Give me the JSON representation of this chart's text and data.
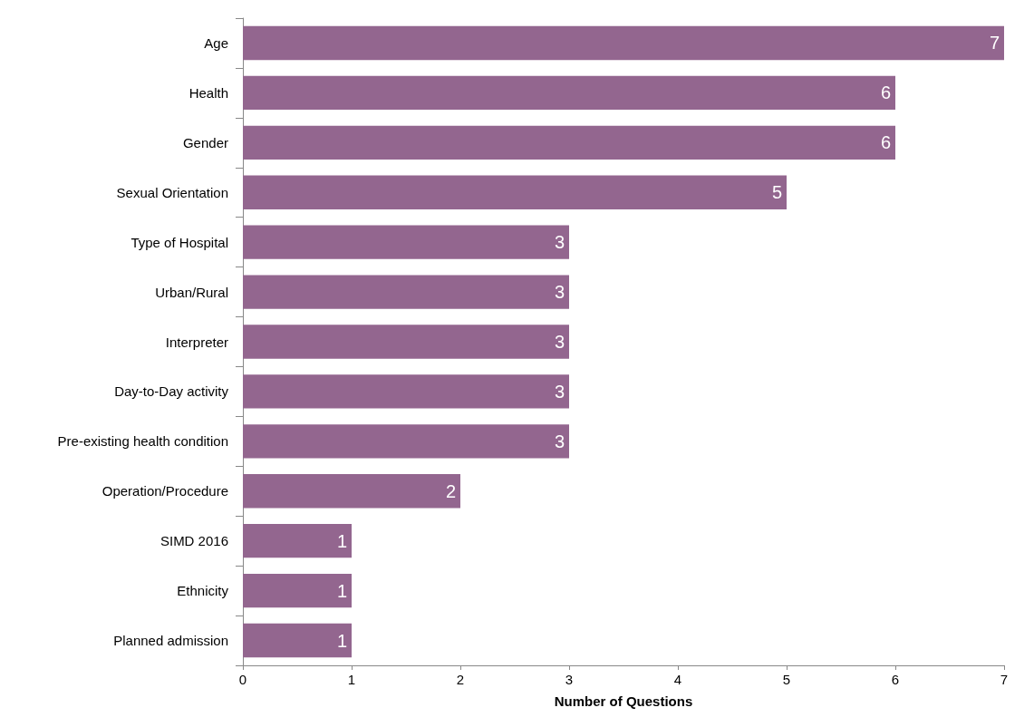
{
  "chart_data": {
    "type": "bar",
    "orientation": "horizontal",
    "xlabel": "Number of Questions",
    "categories": [
      "Age",
      "Health",
      "Gender",
      "Sexual Orientation",
      "Type of Hospital",
      "Urban/Rural",
      "Interpreter",
      "Day-to-Day activity",
      "Pre-existing health condition",
      "Operation/Procedure",
      "SIMD 2016",
      "Ethnicity",
      "Planned admission"
    ],
    "values": [
      7,
      6,
      6,
      5,
      3,
      3,
      3,
      3,
      3,
      2,
      1,
      1,
      1
    ],
    "color": "#93668f",
    "xlim": [
      0,
      7
    ],
    "xticks": [
      0,
      1,
      2,
      3,
      4,
      5,
      6,
      7
    ],
    "grid": false,
    "data_labels": true
  }
}
